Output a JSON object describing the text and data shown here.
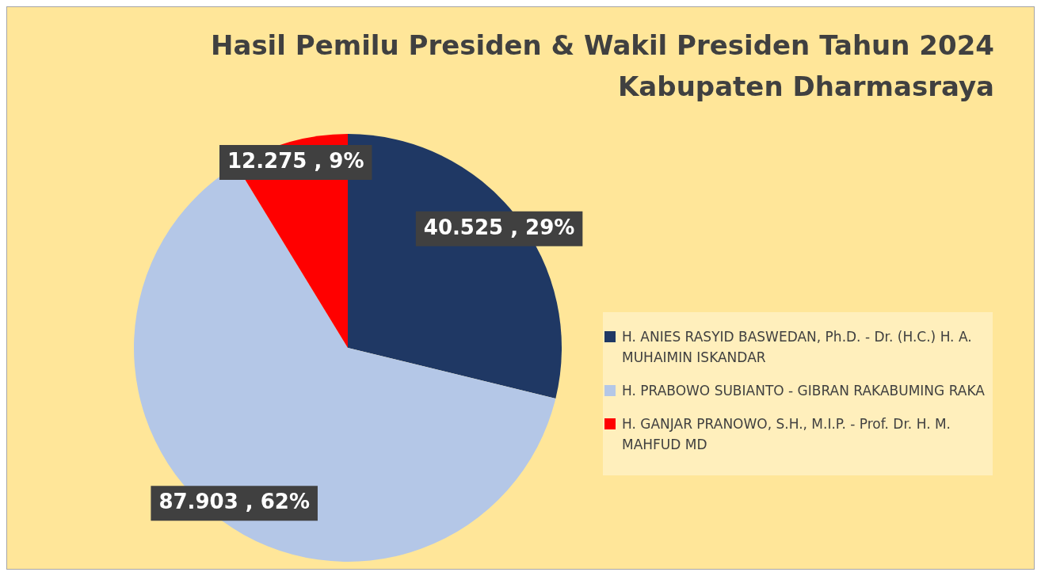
{
  "chart_data": {
    "type": "pie",
    "title": "Hasil Pemilu Presiden & Wakil Presiden Tahun 2024\nKabupaten Dharmasraya",
    "categories": [
      "H. ANIES RASYID BASWEDAN, Ph.D. - Dr. (H.C.) H. A. MUHAIMIN ISKANDAR",
      "H. PRABOWO SUBIANTO - GIBRAN RAKABUMING RAKA",
      "H. GANJAR PRANOWO, S.H., M.I.P. - Prof. Dr. H. M. MAHFUD MD"
    ],
    "values": [
      40525,
      87903,
      12275
    ],
    "value_labels": [
      "40.525 , 29%",
      "87.903 , 62%",
      "12.275 , 9%"
    ],
    "colors": [
      "#1f3864",
      "#b4c7e7",
      "#ff0000"
    ],
    "legend": "right"
  }
}
